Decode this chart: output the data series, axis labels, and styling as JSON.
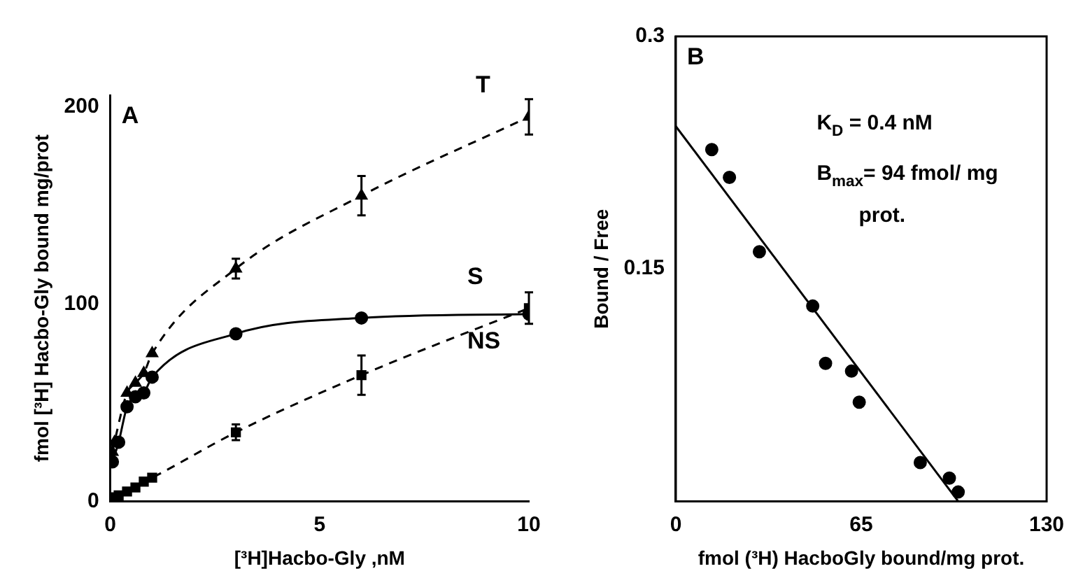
{
  "chart_data": [
    {
      "type": "line",
      "xlabel": "[³H]Hacbo-Gly ,nM",
      "ylabel": "fmol [³H] Hacbo-Gly bound mg/prot",
      "annotations": [
        "A"
      ],
      "xlim": [
        0,
        10
      ],
      "ylim": [
        0,
        206
      ],
      "xticks": [
        0,
        5,
        10
      ],
      "yticks": [
        0,
        100,
        200
      ],
      "grid": false,
      "legend": false,
      "series": [
        {
          "name": "T",
          "color": "#000000",
          "marker": "triangle",
          "line_style": "dashed",
          "x": [
            0.05,
            0.1,
            0.4,
            0.6,
            0.8,
            1,
            3,
            6,
            10
          ],
          "values": [
            25,
            30,
            55,
            60,
            65,
            75,
            118,
            155,
            195
          ],
          "errors": [
            null,
            null,
            null,
            null,
            null,
            null,
            5,
            10,
            9
          ]
        },
        {
          "name": "S",
          "color": "#000000",
          "marker": "circle",
          "line_style": "solid",
          "x": [
            0.05,
            0.1,
            0.2,
            0.4,
            0.6,
            0.8,
            1,
            3,
            6,
            10
          ],
          "values": [
            20,
            null,
            30,
            48,
            53,
            55,
            63,
            85,
            93,
            95
          ]
        },
        {
          "name": "NS",
          "color": "#000000",
          "marker": "square",
          "line_style": "dashed",
          "x": [
            0.05,
            0.2,
            0.4,
            0.6,
            0.8,
            1,
            3,
            6,
            10
          ],
          "values": [
            2,
            3,
            5,
            7,
            10,
            12,
            35,
            64,
            98
          ],
          "errors": [
            null,
            null,
            null,
            null,
            null,
            null,
            4,
            10,
            8
          ]
        }
      ]
    },
    {
      "type": "scatter",
      "xlabel": "fmol (³H) HacboGly bound/mg prot.",
      "ylabel": "Bound / Free",
      "annotations": [
        "B",
        "K$_{D}$ = 0.4 nM",
        "B$_{max}$= 94 fmol/ mg prot."
      ],
      "xlim": [
        0,
        130
      ],
      "ylim": [
        0,
        0.3
      ],
      "xticks": [
        0,
        65,
        130
      ],
      "yticks": [
        0.15,
        0.3
      ],
      "grid": false,
      "legend": false,
      "series": [
        {
          "color": "#000000",
          "marker": "circle",
          "x": [
            12.6,
            18.8,
            29.3,
            48,
            52.5,
            61.6,
            64.3,
            85.7,
            95.9,
            99
          ],
          "values": [
            0.227,
            0.209,
            0.161,
            0.126,
            0.089,
            0.084,
            0.064,
            0.025,
            0.015,
            0.006
          ]
        },
        {
          "type": "line",
          "color": "#000000",
          "marker": "none",
          "line_style": "solid",
          "x": [
            0,
            99
          ],
          "values": [
            0.242,
            0
          ]
        }
      ]
    }
  ]
}
